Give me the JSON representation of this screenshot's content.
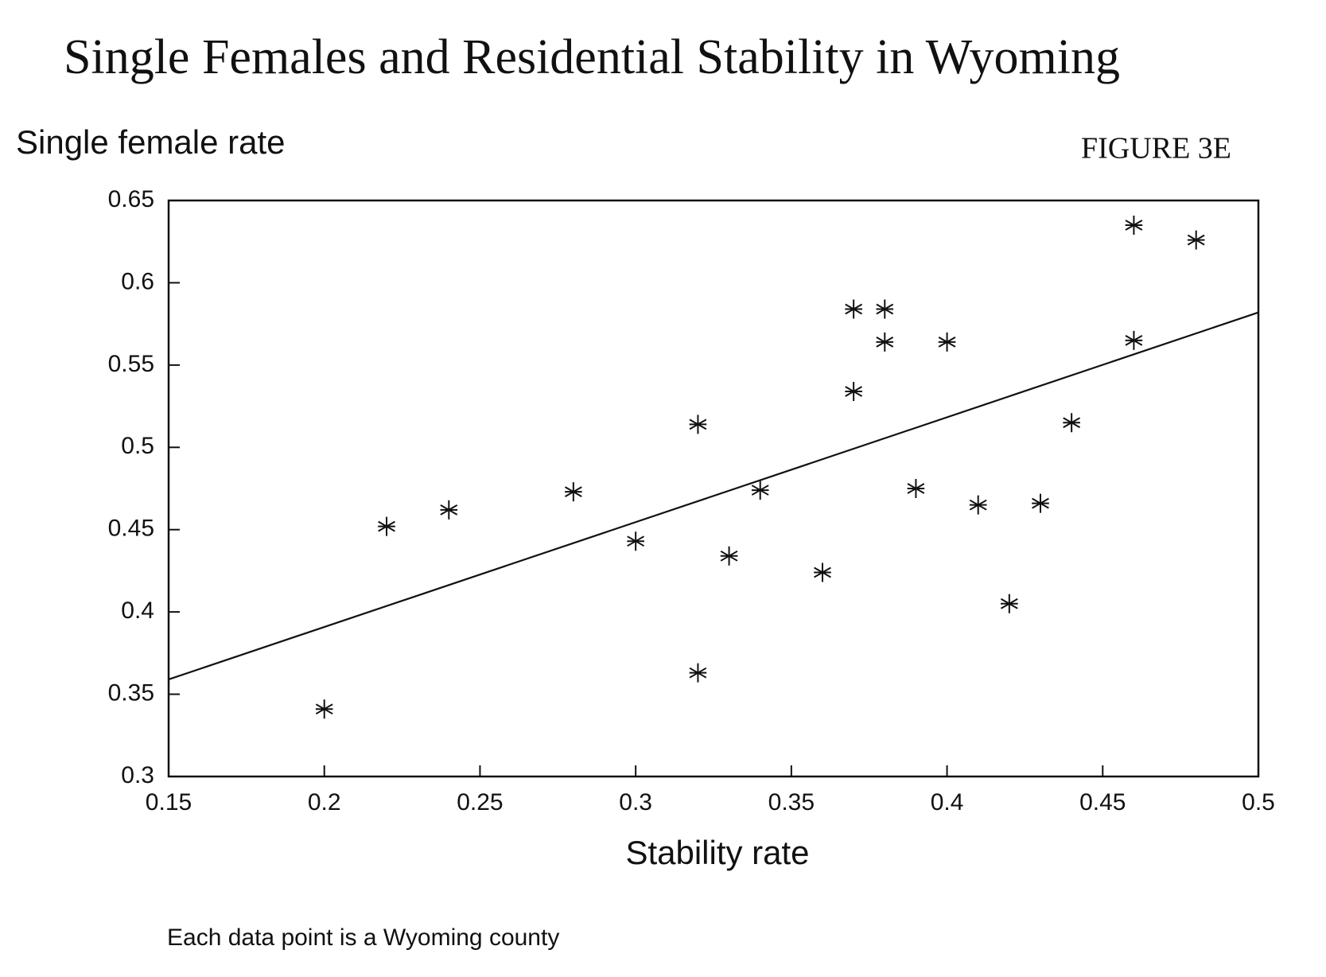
{
  "chart_data": {
    "type": "scatter",
    "title": "Single Females and Residential Stability in Wyoming",
    "figure_label": "FIGURE 3E",
    "y_label": "Single female rate",
    "x_label": "Stability rate",
    "note": "Each data point is a Wyoming county",
    "x": [
      0.46,
      0.48,
      0.37,
      0.38,
      0.38,
      0.4,
      0.46,
      0.37,
      0.32,
      0.44,
      0.28,
      0.34,
      0.39,
      0.24,
      0.22,
      0.41,
      0.43,
      0.3,
      0.33,
      0.36,
      0.42,
      0.32,
      0.2
    ],
    "values": [
      0.635,
      0.626,
      0.584,
      0.584,
      0.564,
      0.564,
      0.565,
      0.534,
      0.514,
      0.515,
      0.473,
      0.474,
      0.475,
      0.462,
      0.452,
      0.465,
      0.466,
      0.443,
      0.434,
      0.424,
      0.405,
      0.363,
      0.341
    ],
    "color": "#111111",
    "trend": {
      "x": [
        0.15,
        0.5
      ],
      "values": [
        0.359,
        0.582
      ],
      "color": "#111111"
    },
    "xlim": [
      0.15,
      0.5
    ],
    "xticks": [
      0.15,
      0.2,
      0.25,
      0.3,
      0.35,
      0.4,
      0.45,
      0.5
    ],
    "ylim": [
      0.3,
      0.65
    ],
    "yticks": [
      0.3,
      0.35,
      0.4,
      0.45,
      0.5,
      0.55,
      0.6,
      0.65
    ],
    "grid": false
  }
}
